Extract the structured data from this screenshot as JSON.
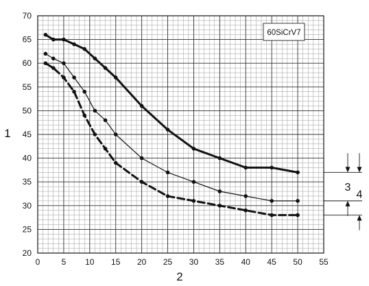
{
  "chart_data": {
    "type": "line",
    "legend_box": "60SiCrV7",
    "xlabel": "2",
    "ylabel": "1",
    "xlim": [
      0,
      55
    ],
    "ylim": [
      20,
      70
    ],
    "x_ticks": [
      0,
      5,
      10,
      15,
      20,
      25,
      30,
      35,
      40,
      45,
      50,
      55
    ],
    "y_ticks": [
      20,
      25,
      30,
      35,
      40,
      45,
      50,
      55,
      60,
      65,
      70
    ],
    "grid": true,
    "minor_x_step": 1,
    "minor_y_step": 1,
    "series": [
      {
        "style": "thick-solid",
        "x": [
          1.5,
          3,
          5,
          7,
          9,
          11,
          13,
          15,
          20,
          25,
          30,
          35,
          40,
          45,
          50
        ],
        "y": [
          66,
          65,
          65,
          64,
          63,
          61,
          59,
          57,
          51,
          46,
          42,
          40,
          38,
          38,
          37
        ]
      },
      {
        "style": "thin-solid",
        "x": [
          1.5,
          3,
          5,
          7,
          9,
          11,
          13,
          15,
          20,
          25,
          30,
          35,
          40,
          45,
          50
        ],
        "y": [
          62,
          61,
          60,
          57,
          54,
          50,
          48,
          45,
          40,
          37,
          35,
          33,
          32,
          31,
          31
        ]
      },
      {
        "style": "thick-dashed",
        "x": [
          1.5,
          3,
          5,
          7,
          9,
          11,
          13,
          15,
          20,
          25,
          30,
          35,
          40,
          45,
          50
        ],
        "y": [
          60,
          59,
          57,
          54,
          49,
          45,
          42,
          39,
          35,
          32,
          31,
          30,
          29,
          28,
          28
        ]
      }
    ],
    "dimension_annotations": [
      {
        "label": "3",
        "from": 31,
        "to": 37
      },
      {
        "label": "4",
        "from": 28,
        "to": 37
      }
    ]
  }
}
